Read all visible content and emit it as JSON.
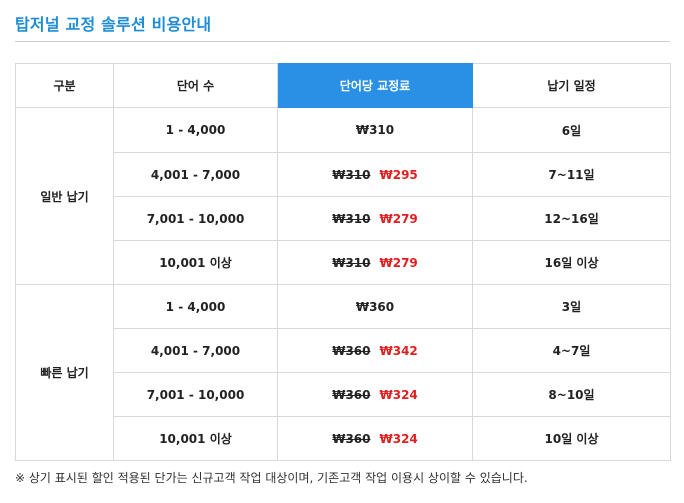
{
  "page": {
    "title": "탑저널 교정 솔루션 비용안내"
  },
  "table": {
    "headers": {
      "category": "구분",
      "words": "단어 수",
      "price": "단어당 교정료",
      "schedule": "납기 일정"
    },
    "groups": [
      {
        "name": "일반 납기",
        "rows": [
          {
            "words": "1 - 4,000",
            "old_price": "",
            "price": "₩310",
            "schedule": "6일"
          },
          {
            "words": "4,001 - 7,000",
            "old_price": "₩310",
            "price": "₩295",
            "schedule": "7~11일"
          },
          {
            "words": "7,001 - 10,000",
            "old_price": "₩310",
            "price": "₩279",
            "schedule": "12~16일"
          },
          {
            "words": "10,001 이상",
            "old_price": "₩310",
            "price": "₩279",
            "schedule": "16일 이상"
          }
        ]
      },
      {
        "name": "빠른 납기",
        "rows": [
          {
            "words": "1 - 4,000",
            "old_price": "",
            "price": "₩360",
            "schedule": "3일"
          },
          {
            "words": "4,001 - 7,000",
            "old_price": "₩360",
            "price": "₩342",
            "schedule": "4~7일"
          },
          {
            "words": "7,001 - 10,000",
            "old_price": "₩360",
            "price": "₩324",
            "schedule": "8~10일"
          },
          {
            "words": "10,001 이상",
            "old_price": "₩360",
            "price": "₩324",
            "schedule": "10일 이상"
          }
        ]
      }
    ]
  },
  "footnote": "※ 상기 표시된 할인 적용된 단가는 신규고객 작업 대상이며, 기존고객 작업 이용시 상이할 수 있습니다.",
  "colors": {
    "title": "#1f8dd6",
    "header_highlight": "#2a90e6",
    "discount_price": "#e02020"
  }
}
